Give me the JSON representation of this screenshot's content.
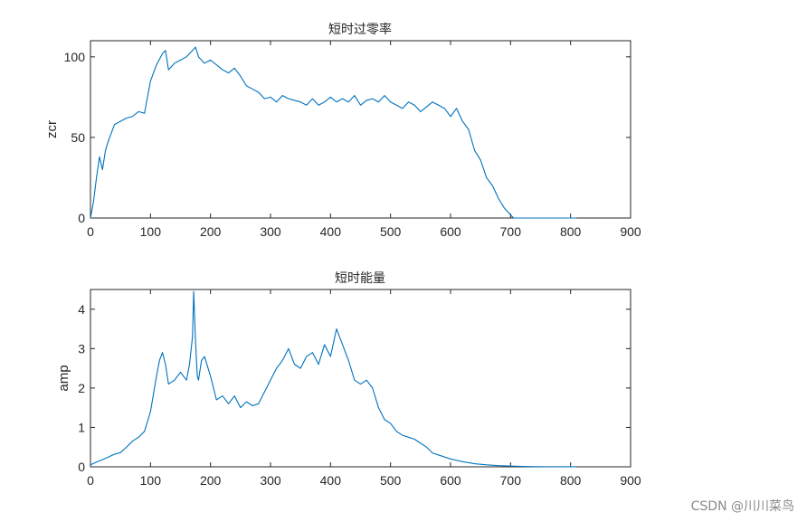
{
  "watermark": "CSDN @川川菜鸟",
  "chart_data": [
    {
      "type": "line",
      "title": "短时过零率",
      "xlabel": "",
      "ylabel": "zcr",
      "xlim": [
        0,
        900
      ],
      "ylim": [
        0,
        110
      ],
      "xticks": [
        0,
        100,
        200,
        300,
        400,
        500,
        600,
        700,
        800,
        900
      ],
      "yticks": [
        0,
        50,
        100
      ],
      "grid": false,
      "color": "#0072BD",
      "series": [
        {
          "x": [
            0,
            5,
            10,
            15,
            20,
            25,
            30,
            40,
            50,
            60,
            70,
            80,
            90,
            100,
            110,
            120,
            125,
            130,
            140,
            150,
            160,
            170,
            175,
            180,
            190,
            200,
            210,
            220,
            230,
            240,
            250,
            260,
            270,
            280,
            290,
            300,
            310,
            320,
            330,
            340,
            350,
            360,
            370,
            380,
            390,
            400,
            410,
            420,
            430,
            440,
            450,
            460,
            470,
            480,
            490,
            500,
            510,
            520,
            530,
            540,
            550,
            560,
            570,
            580,
            590,
            600,
            610,
            620,
            630,
            640,
            650,
            660,
            670,
            680,
            690,
            700,
            705,
            710,
            720,
            730,
            760,
            800,
            810
          ],
          "y": [
            0,
            10,
            25,
            38,
            30,
            42,
            48,
            58,
            60,
            62,
            63,
            66,
            65,
            85,
            95,
            102,
            104,
            92,
            96,
            98,
            100,
            104,
            106,
            100,
            96,
            98,
            95,
            92,
            90,
            93,
            88,
            82,
            80,
            78,
            74,
            75,
            72,
            76,
            74,
            73,
            72,
            70,
            74,
            70,
            72,
            75,
            72,
            74,
            72,
            76,
            70,
            73,
            74,
            72,
            76,
            72,
            70,
            68,
            72,
            70,
            66,
            69,
            72,
            70,
            68,
            63,
            68,
            60,
            55,
            42,
            36,
            25,
            20,
            12,
            6,
            2,
            0,
            0,
            0,
            0,
            0,
            0,
            0
          ]
        }
      ]
    },
    {
      "type": "line",
      "title": "短时能量",
      "xlabel": "",
      "ylabel": "amp",
      "xlim": [
        0,
        900
      ],
      "ylim": [
        0,
        4.5
      ],
      "xticks": [
        0,
        100,
        200,
        300,
        400,
        500,
        600,
        700,
        800,
        900
      ],
      "yticks": [
        0,
        1,
        2,
        3,
        4
      ],
      "grid": false,
      "color": "#0072BD",
      "series": [
        {
          "x": [
            0,
            10,
            20,
            30,
            40,
            50,
            60,
            70,
            80,
            90,
            100,
            110,
            115,
            120,
            125,
            130,
            140,
            150,
            160,
            165,
            170,
            172,
            175,
            178,
            180,
            185,
            190,
            200,
            205,
            210,
            220,
            230,
            240,
            250,
            260,
            270,
            280,
            290,
            300,
            310,
            320,
            330,
            340,
            350,
            360,
            370,
            380,
            390,
            400,
            410,
            420,
            430,
            440,
            450,
            460,
            470,
            480,
            490,
            500,
            510,
            520,
            530,
            540,
            550,
            560,
            570,
            580,
            600,
            620,
            640,
            660,
            680,
            700,
            720,
            740,
            760,
            780,
            800,
            810
          ],
          "y": [
            0.05,
            0.12,
            0.18,
            0.25,
            0.32,
            0.36,
            0.5,
            0.65,
            0.75,
            0.9,
            1.4,
            2.3,
            2.7,
            2.9,
            2.6,
            2.1,
            2.2,
            2.4,
            2.2,
            2.6,
            3.3,
            4.45,
            3.2,
            2.3,
            2.2,
            2.7,
            2.8,
            2.3,
            2.0,
            1.7,
            1.8,
            1.6,
            1.8,
            1.5,
            1.65,
            1.55,
            1.6,
            1.9,
            2.2,
            2.5,
            2.7,
            3.0,
            2.6,
            2.5,
            2.8,
            2.9,
            2.6,
            3.1,
            2.8,
            3.5,
            3.1,
            2.7,
            2.2,
            2.1,
            2.2,
            2.0,
            1.5,
            1.2,
            1.1,
            0.9,
            0.8,
            0.75,
            0.7,
            0.6,
            0.5,
            0.35,
            0.3,
            0.2,
            0.13,
            0.08,
            0.05,
            0.03,
            0.02,
            0.01,
            0.005,
            0.003,
            0.002,
            0.001,
            0.001
          ]
        }
      ]
    }
  ]
}
